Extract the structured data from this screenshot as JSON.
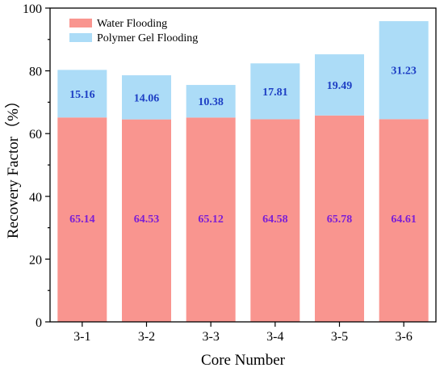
{
  "chart_data": {
    "type": "bar",
    "stacked": true,
    "title": "",
    "xlabel": "Core Number",
    "ylabel": "Recovery Factor（%）",
    "ylim": [
      0,
      100
    ],
    "yticks": [
      "0",
      "20",
      "40",
      "60",
      "80",
      "100"
    ],
    "grid": false,
    "legend_position": "top-left",
    "categories": [
      "3-1",
      "3-2",
      "3-3",
      "3-4",
      "3-5",
      "3-6"
    ],
    "series": [
      {
        "name": "Water Flooding",
        "color": "#f9958f",
        "label_color": "#7b1fd6",
        "values": [
          65.14,
          64.53,
          65.12,
          64.58,
          65.78,
          64.61
        ],
        "labels": [
          "65.14",
          "64.53",
          "65.12",
          "64.58",
          "65.78",
          "64.61"
        ]
      },
      {
        "name": "Polymer Gel Flooding",
        "color": "#acdcf7",
        "label_color": "#1e3fc4",
        "values": [
          15.16,
          14.06,
          10.38,
          17.81,
          19.49,
          31.23
        ],
        "labels": [
          "15.16",
          "14.06",
          "10.38",
          "17.81",
          "19.49",
          "31.23"
        ]
      }
    ]
  }
}
